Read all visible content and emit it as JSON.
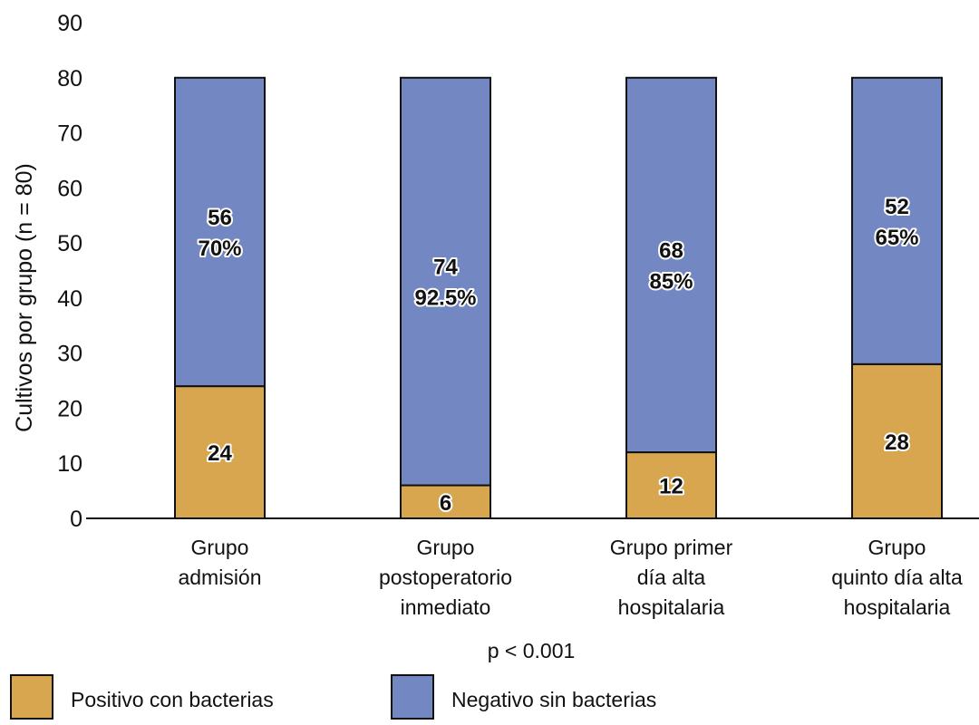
{
  "chart_data": {
    "type": "bar",
    "stacked": true,
    "title": "",
    "xlabel": "",
    "ylabel": "Cultivos por grupo (n = 80)",
    "ylim": [
      0,
      90
    ],
    "yticks": [
      "0",
      "10",
      "20",
      "30",
      "40",
      "50",
      "60",
      "70",
      "80",
      "90"
    ],
    "categories": [
      [
        "Grupo",
        "admisión"
      ],
      [
        "Grupo",
        "postoperatorio",
        "inmediato"
      ],
      [
        "Grupo primer",
        "día alta",
        "hospitalaria"
      ],
      [
        "Grupo",
        "quinto día alta",
        "hospitalaria"
      ]
    ],
    "series": [
      {
        "name": "Positivo con bacterias",
        "color": "#D7A64E",
        "values": [
          24,
          6,
          12,
          28
        ],
        "labels": [
          [
            "24"
          ],
          [
            "6"
          ],
          [
            "12"
          ],
          [
            "28"
          ]
        ]
      },
      {
        "name": "Negativo sin bacterias",
        "color": "#7388C2",
        "values": [
          56,
          74,
          68,
          52
        ],
        "labels": [
          [
            "56",
            "70%"
          ],
          [
            "74",
            "92.5%"
          ],
          [
            "68",
            "85%"
          ],
          [
            "52",
            "65%"
          ]
        ]
      }
    ],
    "annotation": "p < 0.001",
    "legend_placement": "bottom",
    "grid": false
  }
}
